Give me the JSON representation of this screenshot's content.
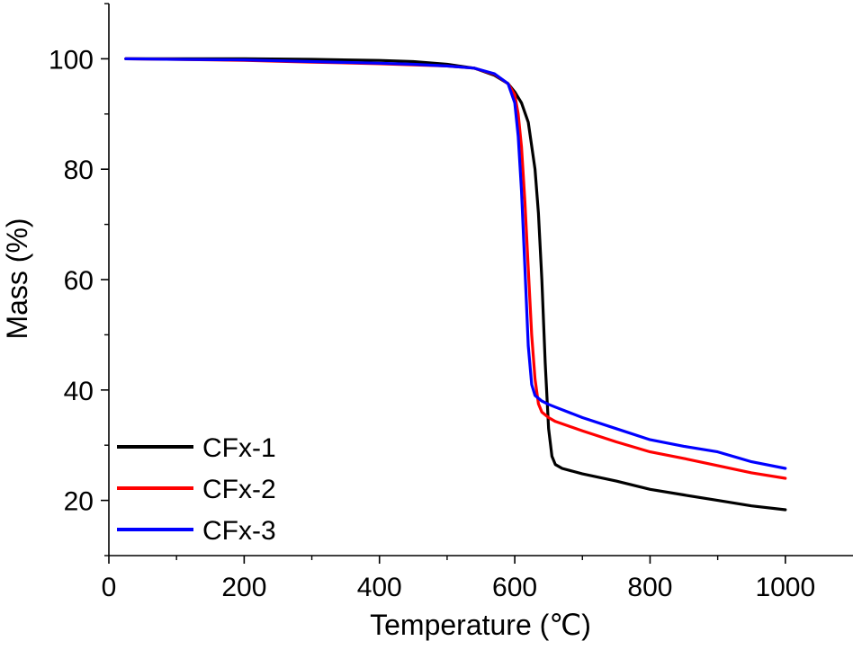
{
  "chart_data": {
    "type": "line",
    "title": "",
    "xlabel": "Temperature (℃)",
    "ylabel": "Mass (%)",
    "xlim": [
      0,
      1100
    ],
    "ylim": [
      10,
      110
    ],
    "xticks": [
      0,
      200,
      400,
      600,
      800,
      1000
    ],
    "xtick_labels": [
      "0",
      "200",
      "400",
      "600",
      "800",
      "1000"
    ],
    "yticks": [
      20,
      40,
      60,
      80,
      100
    ],
    "ytick_labels": [
      "20",
      "40",
      "60",
      "80",
      "100"
    ],
    "grid": false,
    "legend_position": "bottom-left",
    "series": [
      {
        "name": "CFx-1",
        "color": "#000000",
        "x": [
          25,
          100,
          200,
          300,
          400,
          450,
          500,
          540,
          570,
          590,
          600,
          610,
          620,
          630,
          635,
          640,
          645,
          650,
          655,
          660,
          670,
          700,
          750,
          800,
          850,
          900,
          950,
          1000
        ],
        "y": [
          100,
          100,
          100,
          99.9,
          99.7,
          99.5,
          99,
          98.3,
          97,
          95.5,
          94,
          92,
          88.5,
          80,
          72,
          60,
          45,
          33,
          28,
          26.5,
          25.8,
          24.8,
          23.5,
          22,
          21,
          20,
          19,
          18.3
        ]
      },
      {
        "name": "CFx-2",
        "color": "#ff0000",
        "x": [
          25,
          100,
          200,
          300,
          400,
          450,
          500,
          540,
          570,
          590,
          600,
          605,
          610,
          615,
          620,
          625,
          630,
          635,
          640,
          650,
          660,
          700,
          750,
          800,
          850,
          900,
          950,
          1000
        ],
        "y": [
          100,
          99.9,
          99.7,
          99.4,
          99.1,
          98.9,
          98.7,
          98.3,
          97.2,
          95.5,
          93.5,
          90,
          84,
          74,
          62,
          50,
          42,
          37.5,
          36,
          35,
          34.3,
          32.6,
          30.6,
          28.8,
          27.6,
          26.3,
          25,
          24
        ]
      },
      {
        "name": "CFx-3",
        "color": "#0000ff",
        "x": [
          25,
          100,
          200,
          300,
          400,
          450,
          500,
          540,
          570,
          590,
          600,
          605,
          610,
          615,
          620,
          625,
          630,
          640,
          650,
          660,
          700,
          750,
          800,
          850,
          900,
          950,
          1000
        ],
        "y": [
          100,
          99.9,
          99.8,
          99.5,
          99.2,
          99,
          98.7,
          98.3,
          97.3,
          95.5,
          92,
          86,
          76,
          62,
          48,
          41,
          39,
          38,
          37.4,
          36.9,
          35,
          33,
          31,
          29.8,
          28.8,
          27,
          25.8
        ]
      }
    ]
  }
}
